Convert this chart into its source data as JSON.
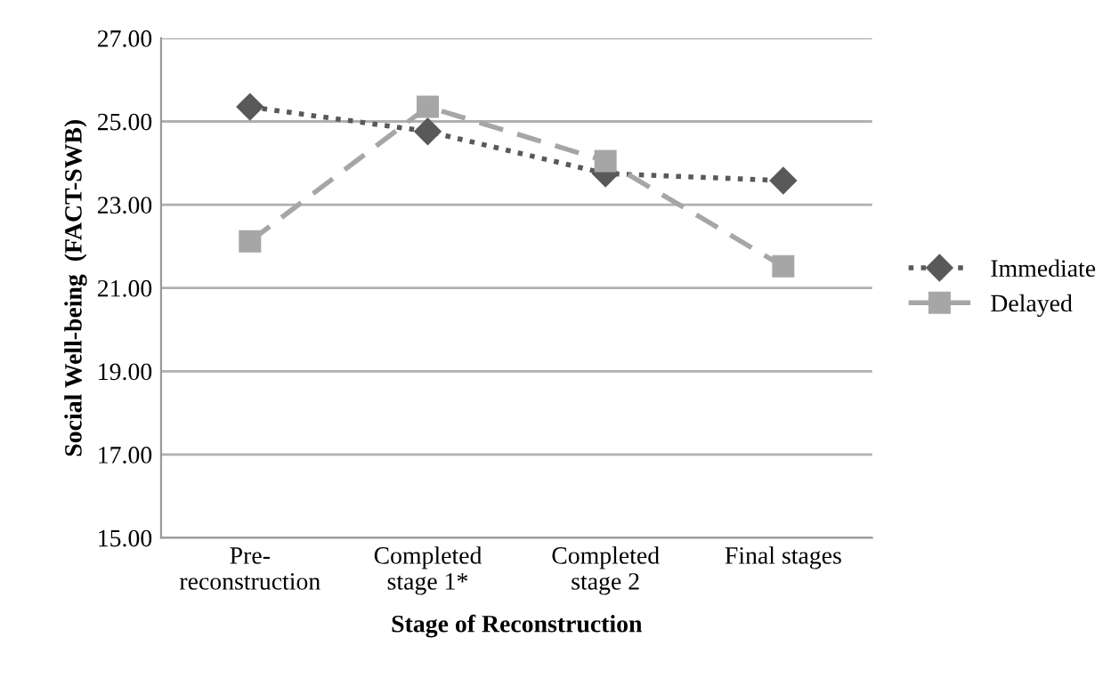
{
  "chart_data": {
    "type": "line",
    "xlabel": "Stage of Reconstruction",
    "ylabel": "Social Well-being  (FACT-SWB)",
    "categories": [
      "Pre-\nreconstruction",
      "Completed\nstage 1*",
      "Completed\nstage 2",
      "Final stages"
    ],
    "series": [
      {
        "name": "Immediate",
        "color": "#595959",
        "values": [
          25.35,
          24.76,
          23.75,
          23.58
        ],
        "marker": "diamond",
        "line_style": "dotted"
      },
      {
        "name": "Delayed",
        "color": "#a6a6a6",
        "values": [
          22.12,
          25.35,
          24.05,
          21.52
        ],
        "marker": "square",
        "line_style": "dashed"
      }
    ],
    "ylim": [
      15,
      27
    ],
    "yticks": [
      {
        "value": 15,
        "label": "15.00"
      },
      {
        "value": 17,
        "label": "17.00"
      },
      {
        "value": 19,
        "label": "19.00"
      },
      {
        "value": 21,
        "label": "21.00"
      },
      {
        "value": 23,
        "label": "23.00"
      },
      {
        "value": 25,
        "label": "25.00"
      },
      {
        "value": 27,
        "label": "27.00"
      }
    ],
    "grid": "y",
    "legend": "right"
  }
}
